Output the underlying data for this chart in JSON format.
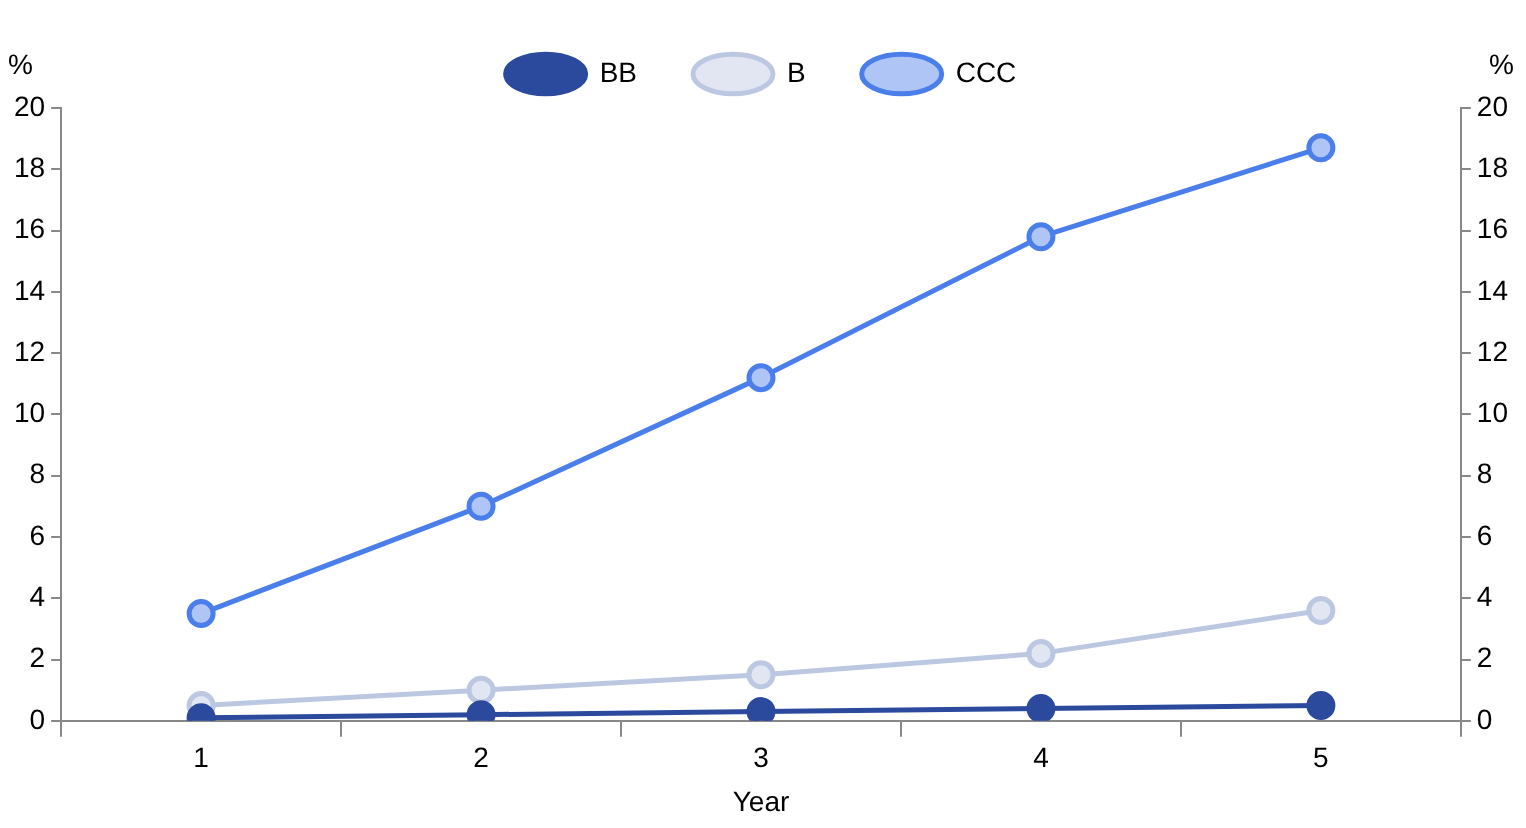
{
  "chart_data": {
    "type": "line",
    "xlabel": "Year",
    "ylabel": "%",
    "y2label": "%",
    "categories": [
      "1",
      "2",
      "3",
      "4",
      "5"
    ],
    "series": [
      {
        "name": "BB",
        "color": "#2b4a9e",
        "values": [
          0.1,
          0.2,
          0.3,
          0.4,
          0.5
        ]
      },
      {
        "name": "B",
        "color": "#bcc8e2",
        "values": [
          0.5,
          1.0,
          1.5,
          2.2,
          3.6
        ]
      },
      {
        "name": "CCC",
        "color": "#4a7eea",
        "values": [
          3.5,
          7.0,
          11.2,
          15.8,
          18.7
        ]
      }
    ],
    "ylim": [
      0,
      20
    ],
    "yticks": [
      0,
      2,
      4,
      6,
      8,
      10,
      12,
      14,
      16,
      18,
      20
    ],
    "y2lim": [
      0,
      20
    ],
    "y2ticks": [
      0,
      2,
      4,
      6,
      8,
      10,
      12,
      14,
      16,
      18,
      20
    ],
    "grid": false,
    "legend": "top",
    "marker": "circle",
    "line_style": "solid"
  }
}
